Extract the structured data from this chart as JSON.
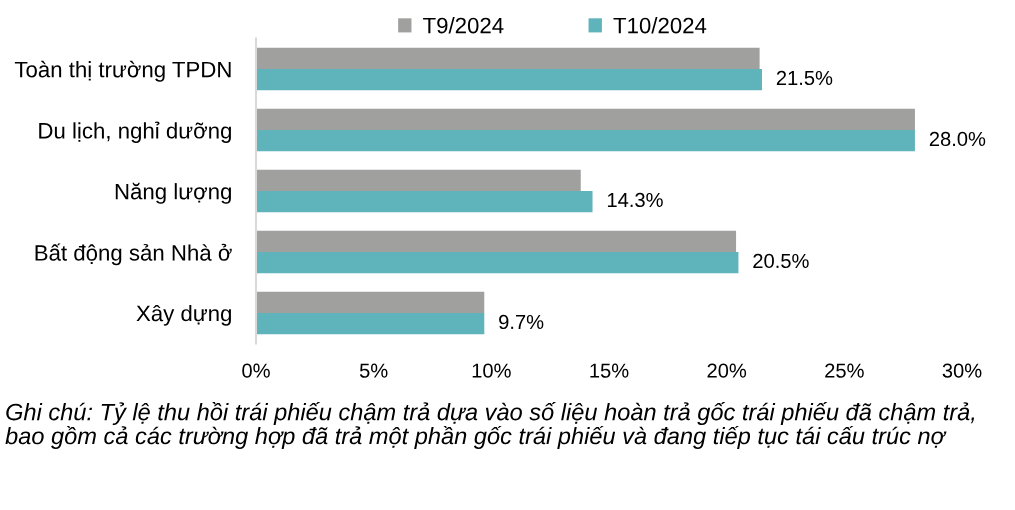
{
  "chart_data": {
    "type": "bar",
    "orientation": "horizontal",
    "categories": [
      "Toàn thị trường TPDN",
      "Du lịch, nghỉ dưỡng",
      "Năng lượng",
      "Bất động sản Nhà ở",
      "Xây dựng"
    ],
    "series": [
      {
        "name": "T9/2024",
        "color": "#a0a09e",
        "values": [
          21.4,
          28.0,
          13.8,
          20.4,
          9.7
        ]
      },
      {
        "name": "T10/2024",
        "color": "#5fb3ba",
        "values": [
          21.5,
          28.0,
          14.3,
          20.5,
          9.7
        ],
        "value_labels": [
          "21.5%",
          "28.0%",
          "14.3%",
          "20.5%",
          "9.7%"
        ]
      }
    ],
    "xlim": [
      0,
      30
    ],
    "xticks": [
      {
        "value": 0,
        "label": "0%"
      },
      {
        "value": 5,
        "label": "5%"
      },
      {
        "value": 10,
        "label": "10%"
      },
      {
        "value": 15,
        "label": "15%"
      },
      {
        "value": 20,
        "label": "20%"
      },
      {
        "value": 25,
        "label": "25%"
      },
      {
        "value": 30,
        "label": "30%"
      }
    ],
    "legend": "top",
    "annotations": [
      "Ghi chú: Tỷ lệ thu hồi trái phiếu chậm trả dựa vào số liệu hoàn trả gốc trái phiếu đã chậm trả, bao gồm cả các trường hợp đã trả một phần gốc trái phiếu và đang tiếp tục tái cấu trúc nợ"
    ]
  }
}
